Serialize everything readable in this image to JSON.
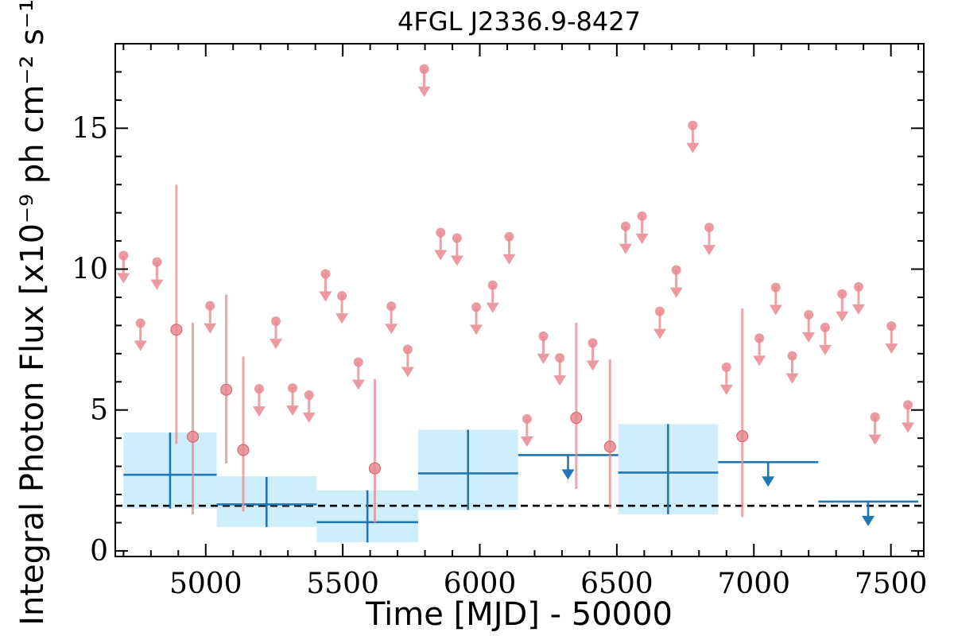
{
  "chart_data": {
    "type": "scatter",
    "title": "4FGL J2336.9-8427",
    "xlabel": "Time [MJD] - 50000",
    "ylabel": "Integral Photon Flux [x10⁻⁹ ph cm⁻² s⁻¹]",
    "xlim": [
      4670,
      7620
    ],
    "ylim": [
      -0.2,
      18.0
    ],
    "xticks": [
      5000,
      5500,
      6000,
      6500,
      7000,
      7500
    ],
    "xtick_labels": [
      "5000",
      "5500",
      "6000",
      "6500",
      "7000",
      "7500"
    ],
    "yticks": [
      0,
      5,
      10,
      15
    ],
    "ytick_labels": [
      "0",
      "5",
      "10",
      "15"
    ],
    "grid": false,
    "colors": {
      "short_bin": "#e8888f",
      "long_bin": "#1f77b4",
      "long_bin_band": "#cfeefc",
      "reference_line": "#000000"
    },
    "series": [
      {
        "bin": "short",
        "detections": [
          {
            "x": 4893,
            "y": 7.85,
            "ylo": 3.8,
            "yhi": 13.0
          },
          {
            "x": 4953,
            "y": 4.05,
            "ylo": 1.3,
            "yhi": 8.1
          },
          {
            "x": 5075,
            "y": 5.72,
            "ylo": 3.1,
            "yhi": 9.1
          },
          {
            "x": 5137,
            "y": 3.58,
            "ylo": 1.4,
            "yhi": 6.9
          },
          {
            "x": 5617,
            "y": 2.93,
            "ylo": 1.0,
            "yhi": 6.1
          },
          {
            "x": 6352,
            "y": 4.72,
            "ylo": 2.2,
            "yhi": 8.1
          },
          {
            "x": 6475,
            "y": 3.7,
            "ylo": 1.5,
            "yhi": 6.8
          },
          {
            "x": 6958,
            "y": 4.07,
            "ylo": 1.2,
            "yhi": 8.6
          }
        ],
        "upper_limits": [
          {
            "x": 4700,
            "y": 10.48
          },
          {
            "x": 4762,
            "y": 8.08
          },
          {
            "x": 4822,
            "y": 10.25
          },
          {
            "x": 5016,
            "y": 8.7
          },
          {
            "x": 5195,
            "y": 5.75
          },
          {
            "x": 5256,
            "y": 8.15
          },
          {
            "x": 5317,
            "y": 5.78
          },
          {
            "x": 5377,
            "y": 5.53
          },
          {
            "x": 5437,
            "y": 9.83
          },
          {
            "x": 5497,
            "y": 9.05
          },
          {
            "x": 5557,
            "y": 6.7
          },
          {
            "x": 5677,
            "y": 8.68
          },
          {
            "x": 5737,
            "y": 7.15
          },
          {
            "x": 5797,
            "y": 17.1
          },
          {
            "x": 5857,
            "y": 11.3
          },
          {
            "x": 5917,
            "y": 11.1
          },
          {
            "x": 5987,
            "y": 8.65
          },
          {
            "x": 6047,
            "y": 9.43
          },
          {
            "x": 6107,
            "y": 11.15
          },
          {
            "x": 6172,
            "y": 4.68
          },
          {
            "x": 6232,
            "y": 7.62
          },
          {
            "x": 6292,
            "y": 6.85
          },
          {
            "x": 6412,
            "y": 7.38
          },
          {
            "x": 6532,
            "y": 11.52
          },
          {
            "x": 6592,
            "y": 11.88
          },
          {
            "x": 6657,
            "y": 8.5
          },
          {
            "x": 6717,
            "y": 9.97
          },
          {
            "x": 6777,
            "y": 15.1
          },
          {
            "x": 6837,
            "y": 11.48
          },
          {
            "x": 6900,
            "y": 6.52
          },
          {
            "x": 7020,
            "y": 7.55
          },
          {
            "x": 7080,
            "y": 9.35
          },
          {
            "x": 7140,
            "y": 6.92
          },
          {
            "x": 7200,
            "y": 8.38
          },
          {
            "x": 7260,
            "y": 7.93
          },
          {
            "x": 7322,
            "y": 9.12
          },
          {
            "x": 7382,
            "y": 9.37
          },
          {
            "x": 7442,
            "y": 4.75
          },
          {
            "x": 7502,
            "y": 7.98
          },
          {
            "x": 7562,
            "y": 5.18
          }
        ]
      },
      {
        "bin": "long",
        "detections": [
          {
            "x0": 4700,
            "x1": 5040,
            "xc": 4870,
            "y": 2.7,
            "ylo": 1.5,
            "yhi": 4.2,
            "band_lo": 1.5,
            "band_hi": 4.2
          },
          {
            "x0": 5040,
            "x1": 5405,
            "xc": 5222,
            "y": 1.65,
            "ylo": 0.85,
            "yhi": 2.62,
            "band_lo": 0.85,
            "band_hi": 2.65
          },
          {
            "x0": 5405,
            "x1": 5775,
            "xc": 5590,
            "y": 1.02,
            "ylo": 0.3,
            "yhi": 2.15,
            "band_lo": 0.3,
            "band_hi": 2.15
          },
          {
            "x0": 5775,
            "x1": 6140,
            "xc": 5957,
            "y": 2.75,
            "ylo": 1.45,
            "yhi": 4.3,
            "band_lo": 1.45,
            "band_hi": 4.3
          },
          {
            "x0": 6505,
            "x1": 6870,
            "xc": 6687,
            "y": 2.78,
            "ylo": 1.3,
            "yhi": 4.5,
            "band_lo": 1.3,
            "band_hi": 4.5
          }
        ],
        "upper_limits": [
          {
            "x0": 6140,
            "x1": 6505,
            "xc": 6322,
            "y": 3.4
          },
          {
            "x0": 6870,
            "x1": 7235,
            "xc": 7052,
            "y": 3.15
          },
          {
            "x0": 7235,
            "x1": 7600,
            "xc": 7417,
            "y": 1.75
          }
        ]
      }
    ],
    "reference_line": {
      "y": 1.6,
      "style": "dashed"
    }
  }
}
